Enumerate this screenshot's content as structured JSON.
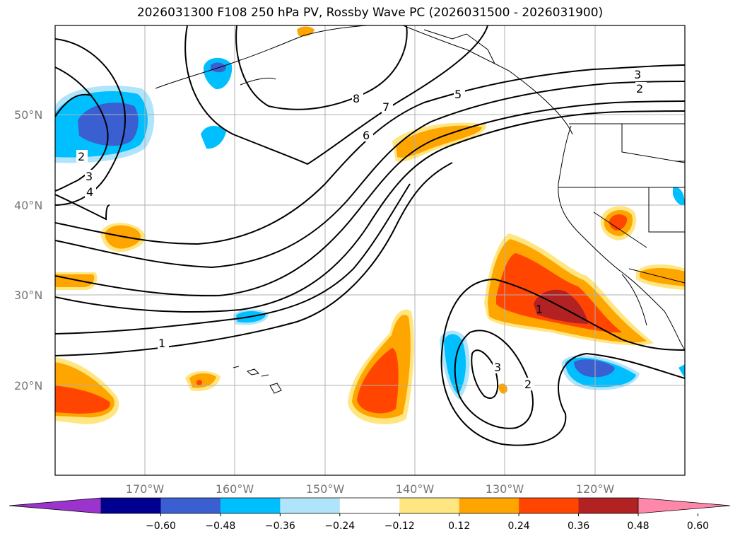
{
  "title": "2026031300 F108 250 hPa PV, Rossby Wave PC (2026031500 - 2026031900)",
  "lat_labels": [
    "50°N",
    "40°N",
    "30°N",
    "20°N"
  ],
  "lon_labels": [
    "170°W",
    "160°W",
    "150°W",
    "140°W",
    "130°W",
    "120°W"
  ],
  "colorbar": {
    "ticks": [
      "−0.60",
      "−0.48",
      "−0.36",
      "−0.24",
      "−0.12",
      "0.12",
      "0.24",
      "0.36",
      "0.48",
      "0.60"
    ],
    "colors": [
      "#9a34cc",
      "#000090",
      "#3a5fd0",
      "#00bfff",
      "#b0e4fa",
      "#ffffff",
      "#ffe680",
      "#ffa500",
      "#ff4500",
      "#b22222",
      "#ff88aa"
    ]
  },
  "contour_labels": [
    "1",
    "2",
    "3",
    "4",
    "5",
    "6",
    "7",
    "8",
    "1",
    "2",
    "3",
    "2",
    "3"
  ]
}
